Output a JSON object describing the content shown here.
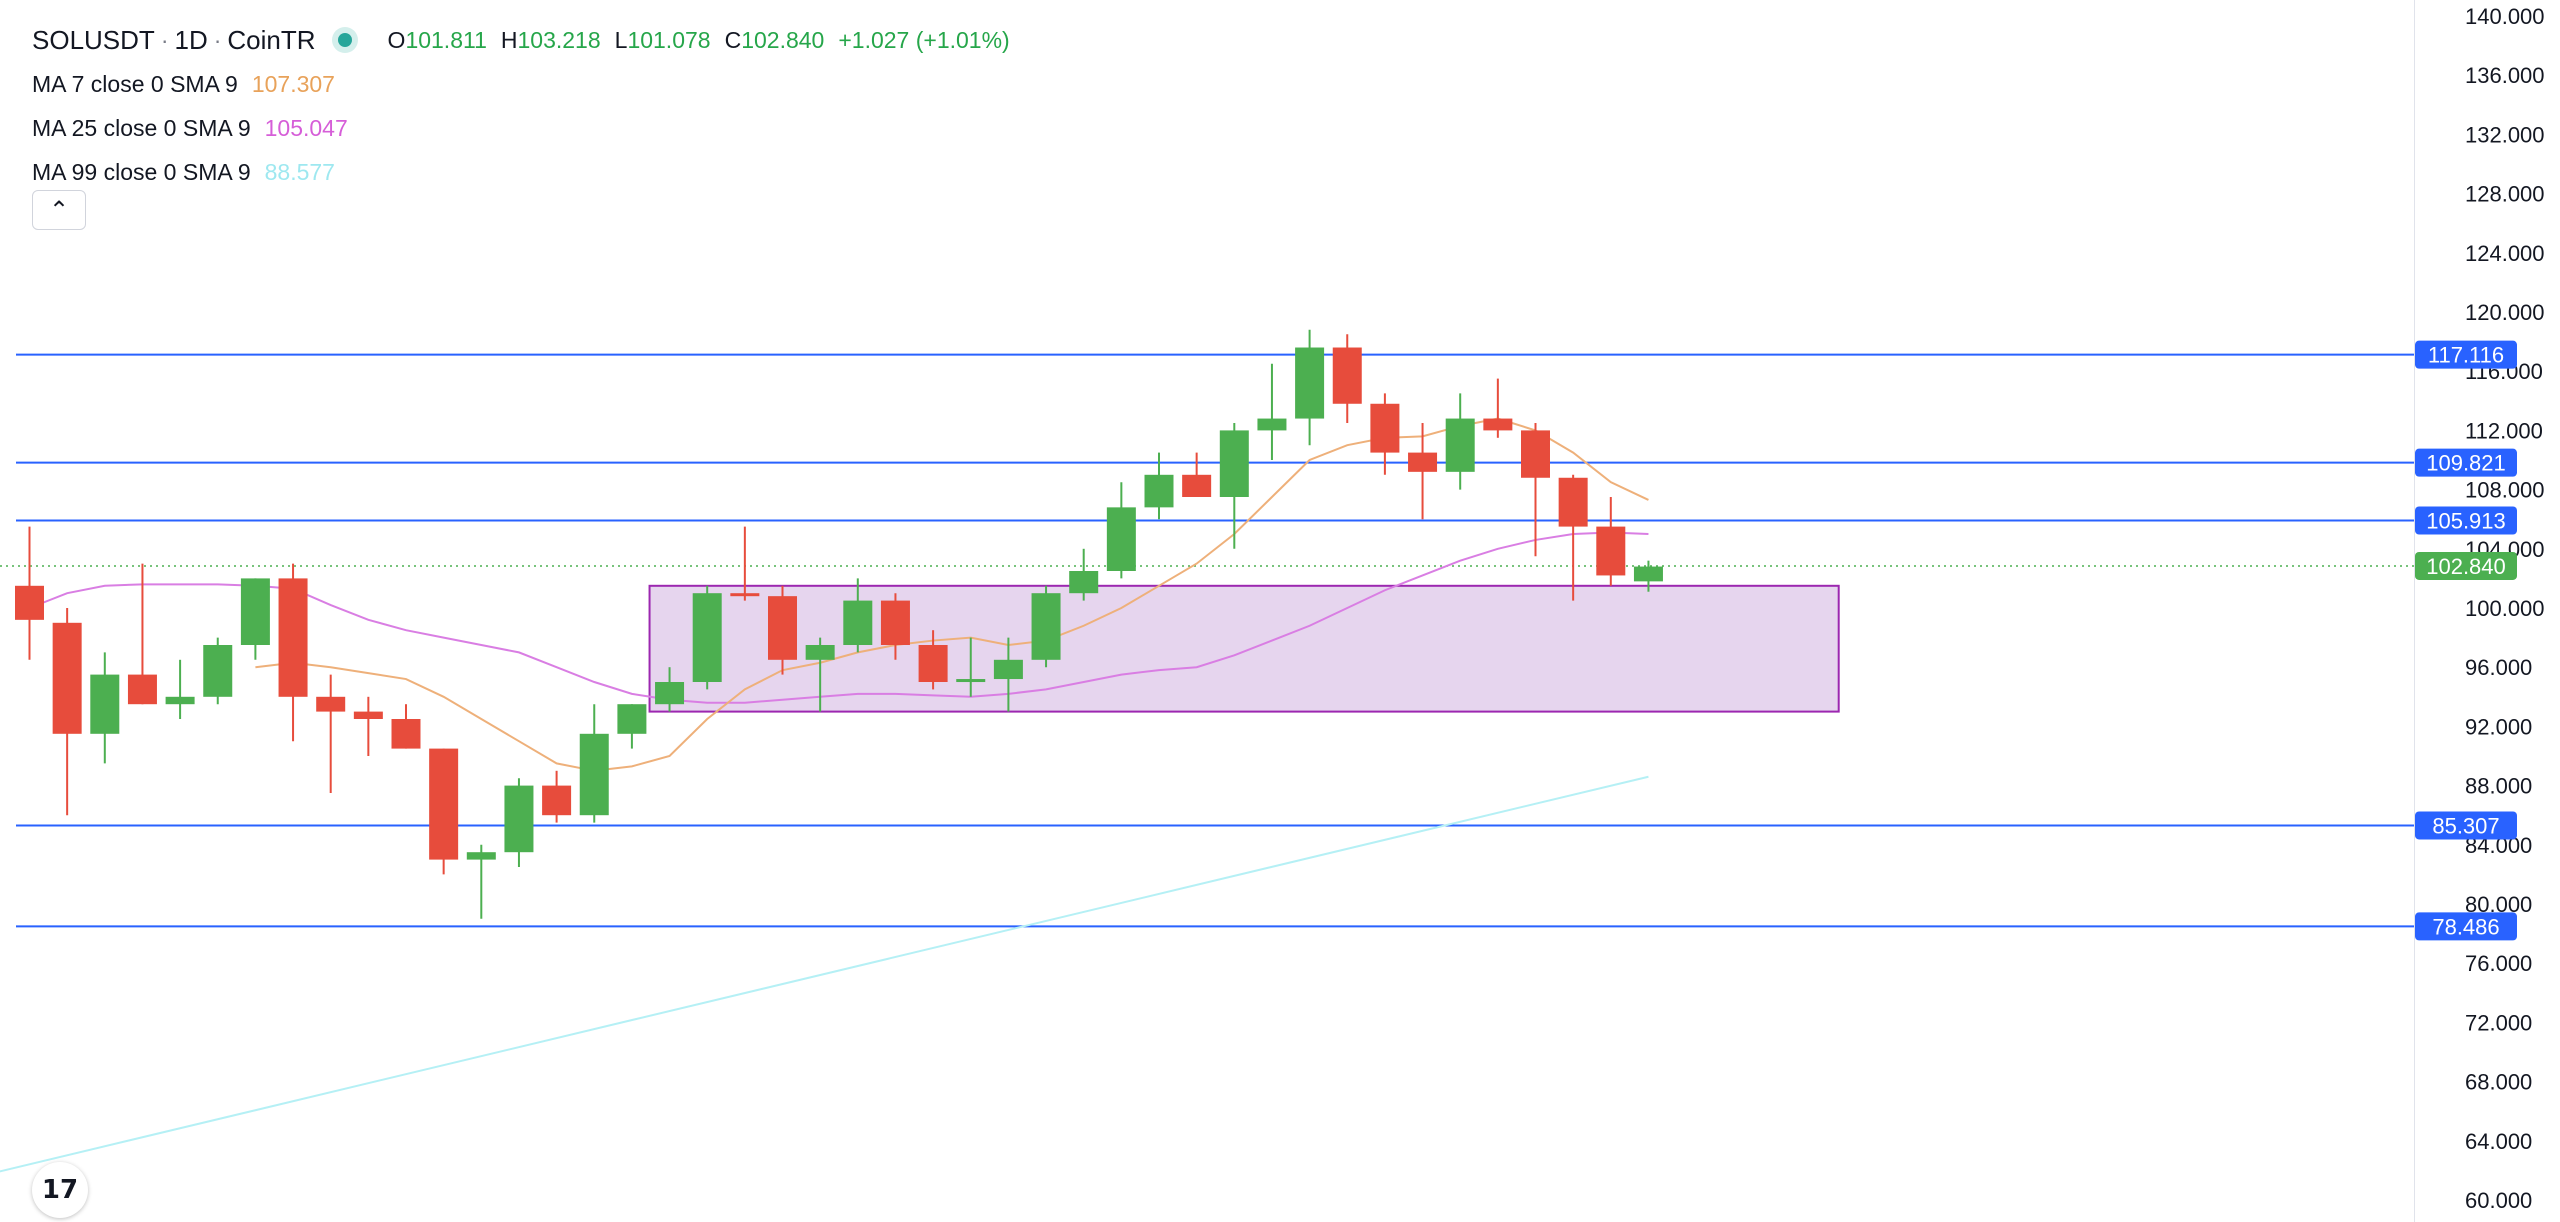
{
  "header": {
    "symbol": "SOLUSDT",
    "interval": "1D",
    "exchange": "CoinTR",
    "open_key": "O",
    "open": "101.811",
    "high_key": "H",
    "high": "103.218",
    "low_key": "L",
    "low": "101.078",
    "close_key": "C",
    "close": "102.840",
    "change": "+1.027 (+1.01%)"
  },
  "indicators": [
    {
      "label": "MA 7 close 0 SMA 9",
      "value": "107.307",
      "color": "#e8a25a"
    },
    {
      "label": "MA 25 close 0 SMA 9",
      "value": "105.047",
      "color": "#d65ed8"
    },
    {
      "label": "MA 99 close 0 SMA 9",
      "value": "88.577",
      "color": "#9ee8f0"
    }
  ],
  "collapse_icon": "chevron-up-icon",
  "logo_text": "17",
  "colors": {
    "up": "#4caf50",
    "down": "#e74c3c",
    "hline": "#2962ff",
    "zone_fill": "#e6d5ee",
    "zone_border": "#9c27b0",
    "last_price": "#4caf50"
  },
  "chart_data": {
    "type": "candlestick",
    "ylim": [
      60,
      140
    ],
    "y_ticks": [
      "140.000",
      "136.000",
      "132.000",
      "128.000",
      "124.000",
      "120.000",
      "116.000",
      "112.000",
      "108.000",
      "104.000",
      "100.000",
      "96.000",
      "92.000",
      "88.000",
      "84.000",
      "80.000",
      "76.000",
      "72.000",
      "68.000",
      "64.000",
      "60.000"
    ],
    "candles": [
      {
        "o": 101.5,
        "h": 105.5,
        "l": 96.5,
        "c": 99.2
      },
      {
        "o": 99.0,
        "h": 100.0,
        "l": 86.0,
        "c": 91.5
      },
      {
        "o": 91.5,
        "h": 97.0,
        "l": 89.5,
        "c": 95.5
      },
      {
        "o": 95.5,
        "h": 103.0,
        "l": 93.5,
        "c": 93.5
      },
      {
        "o": 93.5,
        "h": 96.5,
        "l": 92.5,
        "c": 94.0
      },
      {
        "o": 94.0,
        "h": 98.0,
        "l": 93.5,
        "c": 97.5
      },
      {
        "o": 97.5,
        "h": 102.0,
        "l": 96.5,
        "c": 102.0
      },
      {
        "o": 102.0,
        "h": 103.0,
        "l": 91.0,
        "c": 94.0
      },
      {
        "o": 94.0,
        "h": 95.5,
        "l": 87.5,
        "c": 93.0
      },
      {
        "o": 93.0,
        "h": 94.0,
        "l": 90.0,
        "c": 92.5
      },
      {
        "o": 92.5,
        "h": 93.5,
        "l": 90.5,
        "c": 90.5
      },
      {
        "o": 90.5,
        "h": 90.5,
        "l": 82.0,
        "c": 83.0
      },
      {
        "o": 83.0,
        "h": 84.0,
        "l": 79.0,
        "c": 83.5
      },
      {
        "o": 83.5,
        "h": 88.5,
        "l": 82.5,
        "c": 88.0
      },
      {
        "o": 88.0,
        "h": 89.0,
        "l": 85.5,
        "c": 86.0
      },
      {
        "o": 86.0,
        "h": 93.5,
        "l": 85.5,
        "c": 91.5
      },
      {
        "o": 91.5,
        "h": 93.5,
        "l": 90.5,
        "c": 93.5
      },
      {
        "o": 93.5,
        "h": 96.0,
        "l": 93.0,
        "c": 95.0
      },
      {
        "o": 95.0,
        "h": 101.5,
        "l": 94.5,
        "c": 101.0
      },
      {
        "o": 101.0,
        "h": 105.5,
        "l": 100.5,
        "c": 100.8
      },
      {
        "o": 100.8,
        "h": 101.5,
        "l": 95.5,
        "c": 96.5
      },
      {
        "o": 96.5,
        "h": 98.0,
        "l": 93.0,
        "c": 97.5
      },
      {
        "o": 97.5,
        "h": 102.0,
        "l": 97.0,
        "c": 100.5
      },
      {
        "o": 100.5,
        "h": 101.0,
        "l": 96.5,
        "c": 97.5
      },
      {
        "o": 97.5,
        "h": 98.5,
        "l": 94.5,
        "c": 95.0
      },
      {
        "o": 95.0,
        "h": 98.0,
        "l": 94.0,
        "c": 95.2
      },
      {
        "o": 95.2,
        "h": 98.0,
        "l": 93.0,
        "c": 96.5
      },
      {
        "o": 96.5,
        "h": 101.5,
        "l": 96.0,
        "c": 101.0
      },
      {
        "o": 101.0,
        "h": 104.0,
        "l": 100.5,
        "c": 102.5
      },
      {
        "o": 102.5,
        "h": 108.5,
        "l": 102.0,
        "c": 106.8
      },
      {
        "o": 106.8,
        "h": 110.5,
        "l": 106.0,
        "c": 109.0
      },
      {
        "o": 109.0,
        "h": 110.5,
        "l": 107.5,
        "c": 107.5
      },
      {
        "o": 107.5,
        "h": 112.5,
        "l": 104.0,
        "c": 112.0
      },
      {
        "o": 112.0,
        "h": 116.5,
        "l": 110.0,
        "c": 112.8
      },
      {
        "o": 112.8,
        "h": 118.8,
        "l": 111.0,
        "c": 117.6
      },
      {
        "o": 117.6,
        "h": 118.5,
        "l": 112.5,
        "c": 113.8
      },
      {
        "o": 113.8,
        "h": 114.5,
        "l": 109.0,
        "c": 110.5
      },
      {
        "o": 110.5,
        "h": 112.5,
        "l": 106.0,
        "c": 109.2
      },
      {
        "o": 109.2,
        "h": 114.5,
        "l": 108.0,
        "c": 112.8
      },
      {
        "o": 112.8,
        "h": 115.5,
        "l": 111.5,
        "c": 112.0
      },
      {
        "o": 112.0,
        "h": 112.5,
        "l": 103.5,
        "c": 108.8
      },
      {
        "o": 108.8,
        "h": 109.0,
        "l": 100.5,
        "c": 105.5
      },
      {
        "o": 105.5,
        "h": 107.5,
        "l": 101.5,
        "c": 102.2
      },
      {
        "o": 101.8,
        "h": 103.2,
        "l": 101.1,
        "c": 102.8
      }
    ],
    "ma7": [
      null,
      null,
      null,
      null,
      null,
      null,
      96.0,
      96.3,
      96.0,
      95.6,
      95.2,
      94.0,
      92.5,
      91.0,
      89.5,
      89.0,
      89.3,
      90.0,
      92.5,
      94.5,
      95.8,
      96.3,
      97.0,
      97.5,
      97.8,
      98.0,
      97.5,
      97.8,
      98.8,
      100.0,
      101.5,
      103.0,
      105.0,
      107.5,
      110.0,
      111.0,
      111.5,
      111.6,
      112.3,
      112.8,
      112.0,
      110.5,
      108.5,
      107.3
    ],
    "ma25": [
      100.0,
      101.0,
      101.5,
      101.6,
      101.6,
      101.6,
      101.5,
      101.3,
      100.2,
      99.2,
      98.5,
      98.0,
      97.5,
      97.0,
      96.0,
      95.0,
      94.2,
      93.8,
      93.6,
      93.6,
      93.8,
      94.0,
      94.2,
      94.2,
      94.1,
      94.0,
      94.2,
      94.5,
      95.0,
      95.5,
      95.8,
      96.0,
      96.8,
      97.8,
      98.8,
      100.0,
      101.2,
      102.2,
      103.2,
      104.0,
      104.6,
      105.0,
      105.1,
      105.0
    ],
    "ma99_line": [
      {
        "i": -1.5,
        "v": 61.5
      },
      {
        "i": 43,
        "v": 88.6
      }
    ],
    "horizontal_lines": [
      {
        "value": 117.116,
        "label": "117.116"
      },
      {
        "value": 109.821,
        "label": "109.821"
      },
      {
        "value": 105.913,
        "label": "105.913"
      },
      {
        "value": 85.307,
        "label": "85.307"
      },
      {
        "value": 78.486,
        "label": "78.486"
      }
    ],
    "zone": {
      "from_index": 17,
      "to_index": 48,
      "top": 101.5,
      "bottom": 93.0
    },
    "last_price": {
      "value": 102.84,
      "label": "102.840"
    }
  }
}
